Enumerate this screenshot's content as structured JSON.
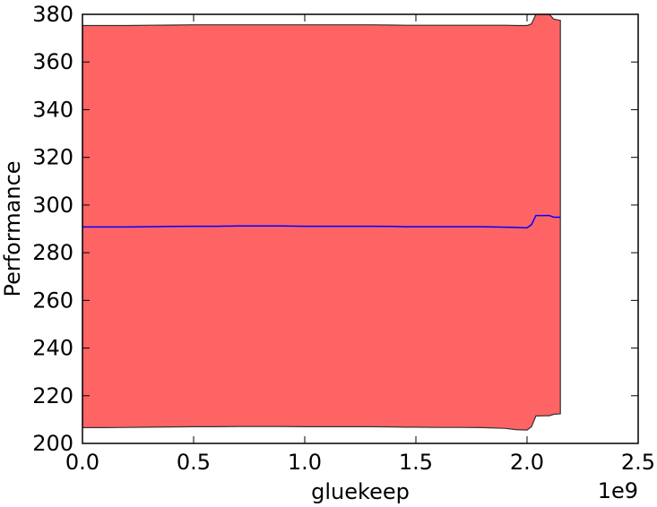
{
  "chart_data": {
    "type": "area",
    "xlabel": "gluekeep",
    "ylabel": "Performance",
    "x_offset_label": "1e9",
    "xlim": [
      0,
      2.5
    ],
    "ylim": [
      200,
      380
    ],
    "xticks": [
      0.0,
      0.5,
      1.0,
      1.5,
      2.0,
      2.5
    ],
    "xtick_labels": [
      "0.0",
      "0.5",
      "1.0",
      "1.5",
      "2.0",
      "2.5"
    ],
    "yticks": [
      200,
      220,
      240,
      260,
      280,
      300,
      320,
      340,
      360,
      380
    ],
    "ytick_labels": [
      "200",
      "220",
      "240",
      "260",
      "280",
      "300",
      "320",
      "340",
      "360",
      "380"
    ],
    "grid": false,
    "legend": "none",
    "band_color": "#ff6464",
    "line_color": "#0000ff",
    "band": {
      "x": [
        0.0,
        0.1,
        0.2,
        0.3,
        0.4,
        0.5,
        0.6,
        0.7,
        0.8,
        0.9,
        1.0,
        1.1,
        1.2,
        1.3,
        1.4,
        1.45,
        1.5,
        1.6,
        1.7,
        1.8,
        1.9,
        1.95,
        2.0,
        2.02,
        2.04,
        2.08,
        2.1,
        2.12,
        2.15
      ],
      "upper": [
        375.3,
        375.3,
        375.3,
        375.4,
        375.5,
        375.6,
        375.6,
        375.6,
        375.6,
        375.6,
        375.6,
        375.6,
        375.6,
        375.6,
        375.5,
        375.4,
        375.4,
        375.4,
        375.4,
        375.4,
        375.4,
        375.3,
        375.3,
        376.0,
        380.5,
        380.8,
        380.0,
        378.0,
        377.5
      ],
      "lower": [
        206.6,
        206.6,
        206.7,
        206.8,
        206.9,
        207.0,
        207.0,
        207.1,
        207.1,
        207.1,
        207.0,
        207.0,
        207.0,
        207.0,
        206.9,
        206.8,
        206.8,
        206.7,
        206.7,
        206.6,
        206.3,
        205.8,
        205.6,
        207.0,
        211.5,
        211.6,
        211.6,
        212.2,
        212.4
      ]
    },
    "series": [
      {
        "x": [
          0.0,
          0.1,
          0.2,
          0.3,
          0.4,
          0.5,
          0.6,
          0.7,
          0.8,
          0.9,
          1.0,
          1.1,
          1.2,
          1.3,
          1.4,
          1.45,
          1.5,
          1.6,
          1.7,
          1.8,
          1.9,
          1.95,
          2.0,
          2.02,
          2.04,
          2.08,
          2.1,
          2.12,
          2.15
        ],
        "values": [
          290.8,
          290.8,
          290.8,
          290.9,
          291.0,
          291.1,
          291.1,
          291.2,
          291.2,
          291.2,
          291.1,
          291.1,
          291.1,
          291.1,
          291.0,
          290.9,
          290.9,
          290.9,
          290.9,
          290.9,
          290.7,
          290.6,
          290.4,
          291.8,
          295.6,
          295.6,
          295.6,
          294.9,
          294.9
        ]
      }
    ]
  }
}
